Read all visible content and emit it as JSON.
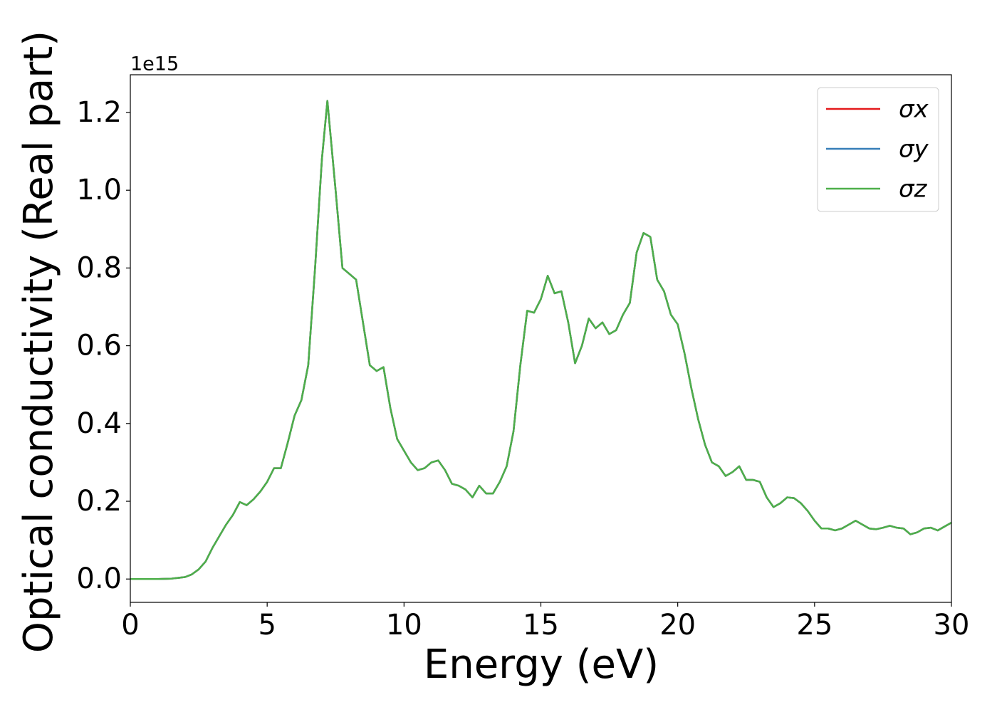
{
  "chart_data": {
    "type": "line",
    "xlabel": "Energy (eV)",
    "ylabel": "Optical conductivity (Real part)",
    "y_offset_label": "1e15",
    "xlim": [
      0,
      30
    ],
    "ylim": [
      -0.06,
      1.297
    ],
    "xticks": [
      0,
      5,
      10,
      15,
      20,
      25,
      30
    ],
    "yticks": [
      {
        "value": 0,
        "label": "0.0"
      },
      {
        "value": 0.2,
        "label": "0.2"
      },
      {
        "value": 0.4,
        "label": "0.4"
      },
      {
        "value": 0.6,
        "label": "0.6"
      },
      {
        "value": 0.8,
        "label": "0.8"
      },
      {
        "value": 1.0,
        "label": "1.0"
      },
      {
        "value": 1.2,
        "label": "1.2"
      }
    ],
    "grid": false,
    "legend": "upper right",
    "x": [
      0,
      0.5,
      1,
      1.5,
      2,
      2.25,
      2.5,
      2.75,
      3,
      3.25,
      3.5,
      3.75,
      4,
      4.25,
      4.5,
      4.75,
      5,
      5.25,
      5.5,
      5.75,
      6,
      6.25,
      6.5,
      6.75,
      7,
      7.2,
      7.5,
      7.75,
      8,
      8.25,
      8.5,
      8.75,
      9,
      9.25,
      9.5,
      9.75,
      10,
      10.25,
      10.5,
      10.75,
      11,
      11.25,
      11.5,
      11.75,
      12,
      12.25,
      12.5,
      12.75,
      13,
      13.25,
      13.5,
      13.75,
      14,
      14.25,
      14.5,
      14.75,
      15,
      15.25,
      15.5,
      15.75,
      16,
      16.25,
      16.5,
      16.75,
      17,
      17.25,
      17.5,
      17.75,
      18,
      18.25,
      18.5,
      18.75,
      19,
      19.25,
      19.5,
      19.75,
      20,
      20.25,
      20.5,
      20.75,
      21,
      21.25,
      21.5,
      21.75,
      22,
      22.25,
      22.5,
      22.75,
      23,
      23.25,
      23.5,
      23.75,
      24,
      24.25,
      24.5,
      24.75,
      25,
      25.25,
      25.5,
      25.75,
      26,
      26.25,
      26.5,
      26.75,
      27,
      27.25,
      27.5,
      27.75,
      28,
      28.25,
      28.5,
      28.75,
      29,
      29.25,
      29.5,
      29.75,
      30
    ],
    "series": [
      {
        "name": "σx",
        "color": "#e41a1c",
        "values": [
          0,
          0,
          0,
          0.001,
          0.005,
          0.012,
          0.025,
          0.045,
          0.08,
          0.11,
          0.14,
          0.165,
          0.198,
          0.19,
          0.205,
          0.225,
          0.25,
          0.285,
          0.285,
          0.35,
          0.42,
          0.46,
          0.55,
          0.8,
          1.08,
          1.23,
          1.0,
          0.8,
          0.785,
          0.77,
          0.66,
          0.55,
          0.535,
          0.545,
          0.44,
          0.36,
          0.33,
          0.3,
          0.28,
          0.285,
          0.3,
          0.305,
          0.28,
          0.245,
          0.24,
          0.23,
          0.21,
          0.24,
          0.22,
          0.22,
          0.25,
          0.29,
          0.38,
          0.55,
          0.69,
          0.685,
          0.72,
          0.78,
          0.735,
          0.74,
          0.66,
          0.555,
          0.6,
          0.67,
          0.645,
          0.66,
          0.63,
          0.64,
          0.68,
          0.71,
          0.84,
          0.89,
          0.88,
          0.77,
          0.74,
          0.68,
          0.655,
          0.58,
          0.49,
          0.41,
          0.345,
          0.3,
          0.29,
          0.265,
          0.275,
          0.29,
          0.255,
          0.255,
          0.25,
          0.21,
          0.185,
          0.195,
          0.21,
          0.208,
          0.195,
          0.175,
          0.15,
          0.13,
          0.13,
          0.125,
          0.13,
          0.14,
          0.15,
          0.14,
          0.13,
          0.128,
          0.132,
          0.137,
          0.132,
          0.13,
          0.115,
          0.12,
          0.13,
          0.132,
          0.125,
          0.135,
          0.145
        ]
      },
      {
        "name": "σy",
        "color": "#377eb8",
        "values": [
          0,
          0,
          0,
          0.001,
          0.005,
          0.012,
          0.025,
          0.045,
          0.08,
          0.11,
          0.14,
          0.165,
          0.198,
          0.19,
          0.205,
          0.225,
          0.25,
          0.285,
          0.285,
          0.35,
          0.42,
          0.46,
          0.55,
          0.8,
          1.08,
          1.23,
          1.0,
          0.8,
          0.785,
          0.77,
          0.66,
          0.55,
          0.535,
          0.545,
          0.44,
          0.36,
          0.33,
          0.3,
          0.28,
          0.285,
          0.3,
          0.305,
          0.28,
          0.245,
          0.24,
          0.23,
          0.21,
          0.24,
          0.22,
          0.22,
          0.25,
          0.29,
          0.38,
          0.55,
          0.69,
          0.685,
          0.72,
          0.78,
          0.735,
          0.74,
          0.66,
          0.555,
          0.6,
          0.67,
          0.645,
          0.66,
          0.63,
          0.64,
          0.68,
          0.71,
          0.84,
          0.89,
          0.88,
          0.77,
          0.74,
          0.68,
          0.655,
          0.58,
          0.49,
          0.41,
          0.345,
          0.3,
          0.29,
          0.265,
          0.275,
          0.29,
          0.255,
          0.255,
          0.25,
          0.21,
          0.185,
          0.195,
          0.21,
          0.208,
          0.195,
          0.175,
          0.15,
          0.13,
          0.13,
          0.125,
          0.13,
          0.14,
          0.15,
          0.14,
          0.13,
          0.128,
          0.132,
          0.137,
          0.132,
          0.13,
          0.115,
          0.12,
          0.13,
          0.132,
          0.125,
          0.135,
          0.145
        ]
      },
      {
        "name": "σz",
        "color": "#4daf4a",
        "values": [
          0,
          0,
          0,
          0.001,
          0.005,
          0.012,
          0.025,
          0.045,
          0.08,
          0.11,
          0.14,
          0.165,
          0.198,
          0.19,
          0.205,
          0.225,
          0.25,
          0.285,
          0.285,
          0.35,
          0.42,
          0.46,
          0.55,
          0.8,
          1.08,
          1.23,
          1.0,
          0.8,
          0.785,
          0.77,
          0.66,
          0.55,
          0.535,
          0.545,
          0.44,
          0.36,
          0.33,
          0.3,
          0.28,
          0.285,
          0.3,
          0.305,
          0.28,
          0.245,
          0.24,
          0.23,
          0.21,
          0.24,
          0.22,
          0.22,
          0.25,
          0.29,
          0.38,
          0.55,
          0.69,
          0.685,
          0.72,
          0.78,
          0.735,
          0.74,
          0.66,
          0.555,
          0.6,
          0.67,
          0.645,
          0.66,
          0.63,
          0.64,
          0.68,
          0.71,
          0.84,
          0.89,
          0.88,
          0.77,
          0.74,
          0.68,
          0.655,
          0.58,
          0.49,
          0.41,
          0.345,
          0.3,
          0.29,
          0.265,
          0.275,
          0.29,
          0.255,
          0.255,
          0.25,
          0.21,
          0.185,
          0.195,
          0.21,
          0.208,
          0.195,
          0.175,
          0.15,
          0.13,
          0.13,
          0.125,
          0.13,
          0.14,
          0.15,
          0.14,
          0.13,
          0.128,
          0.132,
          0.137,
          0.132,
          0.13,
          0.115,
          0.12,
          0.13,
          0.132,
          0.125,
          0.135,
          0.145
        ]
      }
    ]
  }
}
